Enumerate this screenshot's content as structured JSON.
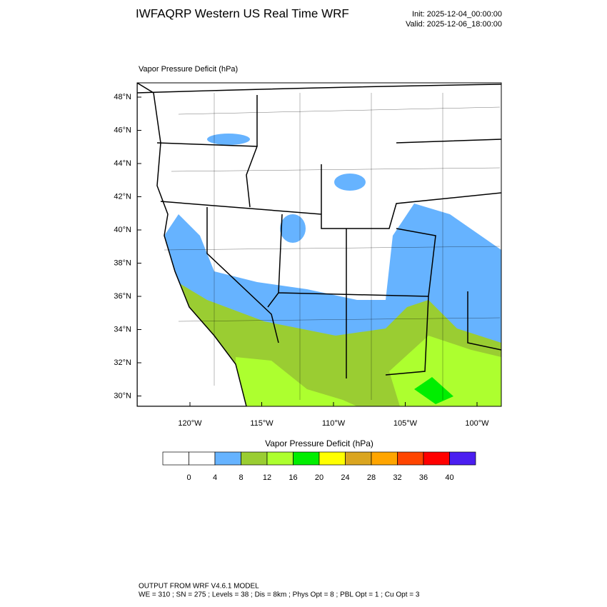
{
  "header": {
    "title": "IWFAQRP Western US Real Time WRF",
    "init": "Init: 2025-12-04_00:00:00",
    "valid": "Valid: 2025-12-06_18:00:00"
  },
  "map": {
    "field_label": "Vapor Pressure Deficit   (hPa)",
    "lat_labels": [
      "48°N",
      "46°N",
      "44°N",
      "42°N",
      "40°N",
      "38°N",
      "36°N",
      "34°N",
      "32°N",
      "30°N"
    ],
    "lon_labels": [
      "120°W",
      "115°W",
      "110°W",
      "105°W",
      "100°W"
    ]
  },
  "colorbar": {
    "title": "Vapor Pressure Deficit  (hPa)",
    "colors": [
      "#ffffff",
      "#ffffff",
      "#66b3ff",
      "#9acd32",
      "#adff2f",
      "#00ee00",
      "#ffff00",
      "#daa520",
      "#ffa500",
      "#ff4500",
      "#ff0000",
      "#4b1ef0"
    ],
    "labels": [
      "0",
      "4",
      "8",
      "12",
      "16",
      "20",
      "24",
      "28",
      "32",
      "36",
      "40"
    ]
  },
  "footer": {
    "line1": "OUTPUT FROM WRF V4.6.1 MODEL",
    "line2": "WE = 310 ; SN = 275 ; Levels = 38 ; Dis = 8km ; Phys Opt = 8 ; PBL Opt = 1 ; Cu Opt = 3"
  }
}
